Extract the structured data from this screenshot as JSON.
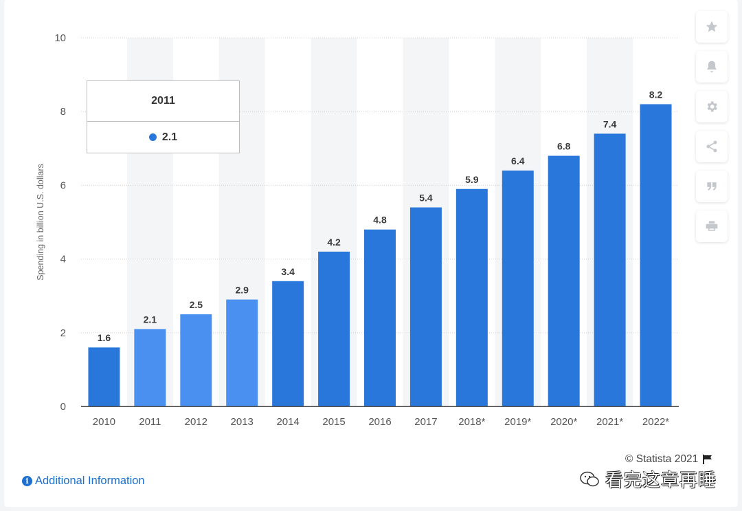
{
  "chart_data": {
    "type": "bar",
    "categories": [
      "2010",
      "2011",
      "2012",
      "2013",
      "2014",
      "2015",
      "2016",
      "2017",
      "2018*",
      "2019*",
      "2020*",
      "2021*",
      "2022*"
    ],
    "values": [
      1.6,
      2.1,
      2.5,
      2.9,
      3.4,
      4.2,
      4.8,
      5.4,
      5.9,
      6.4,
      6.8,
      7.4,
      8.2
    ],
    "value_labels": [
      "1.6",
      "2.1",
      "2.5",
      "2.9",
      "3.4",
      "4.2",
      "4.8",
      "5.4",
      "5.9",
      "6.4",
      "6.8",
      "7.4",
      "8.2"
    ],
    "ylabel": "Spending in billion U.S. dollars",
    "xlabel": "",
    "ylim": [
      0,
      10
    ],
    "yticks": [
      "0",
      "2",
      "4",
      "6",
      "8",
      "10"
    ],
    "grid": true,
    "highlighted_category": "2011",
    "colors": {
      "bar": "#2977db",
      "bar_highlight_group": "#4a90f0",
      "band": "#f4f5f7",
      "grid": "#cfcfcf"
    }
  },
  "tooltip": {
    "title": "2011",
    "value": "2.1"
  },
  "side_tools": [
    {
      "icon": "star-icon",
      "name": "favorite-button"
    },
    {
      "icon": "bell-icon",
      "name": "notification-button"
    },
    {
      "icon": "gear-icon",
      "name": "settings-button"
    },
    {
      "icon": "share-icon",
      "name": "share-button"
    },
    {
      "icon": "quote-icon",
      "name": "cite-button"
    },
    {
      "icon": "print-icon",
      "name": "print-button"
    }
  ],
  "footer": {
    "additional_info": "Additional Information",
    "copyright": "© Statista 2021",
    "watermark": "看完这章再睡"
  }
}
